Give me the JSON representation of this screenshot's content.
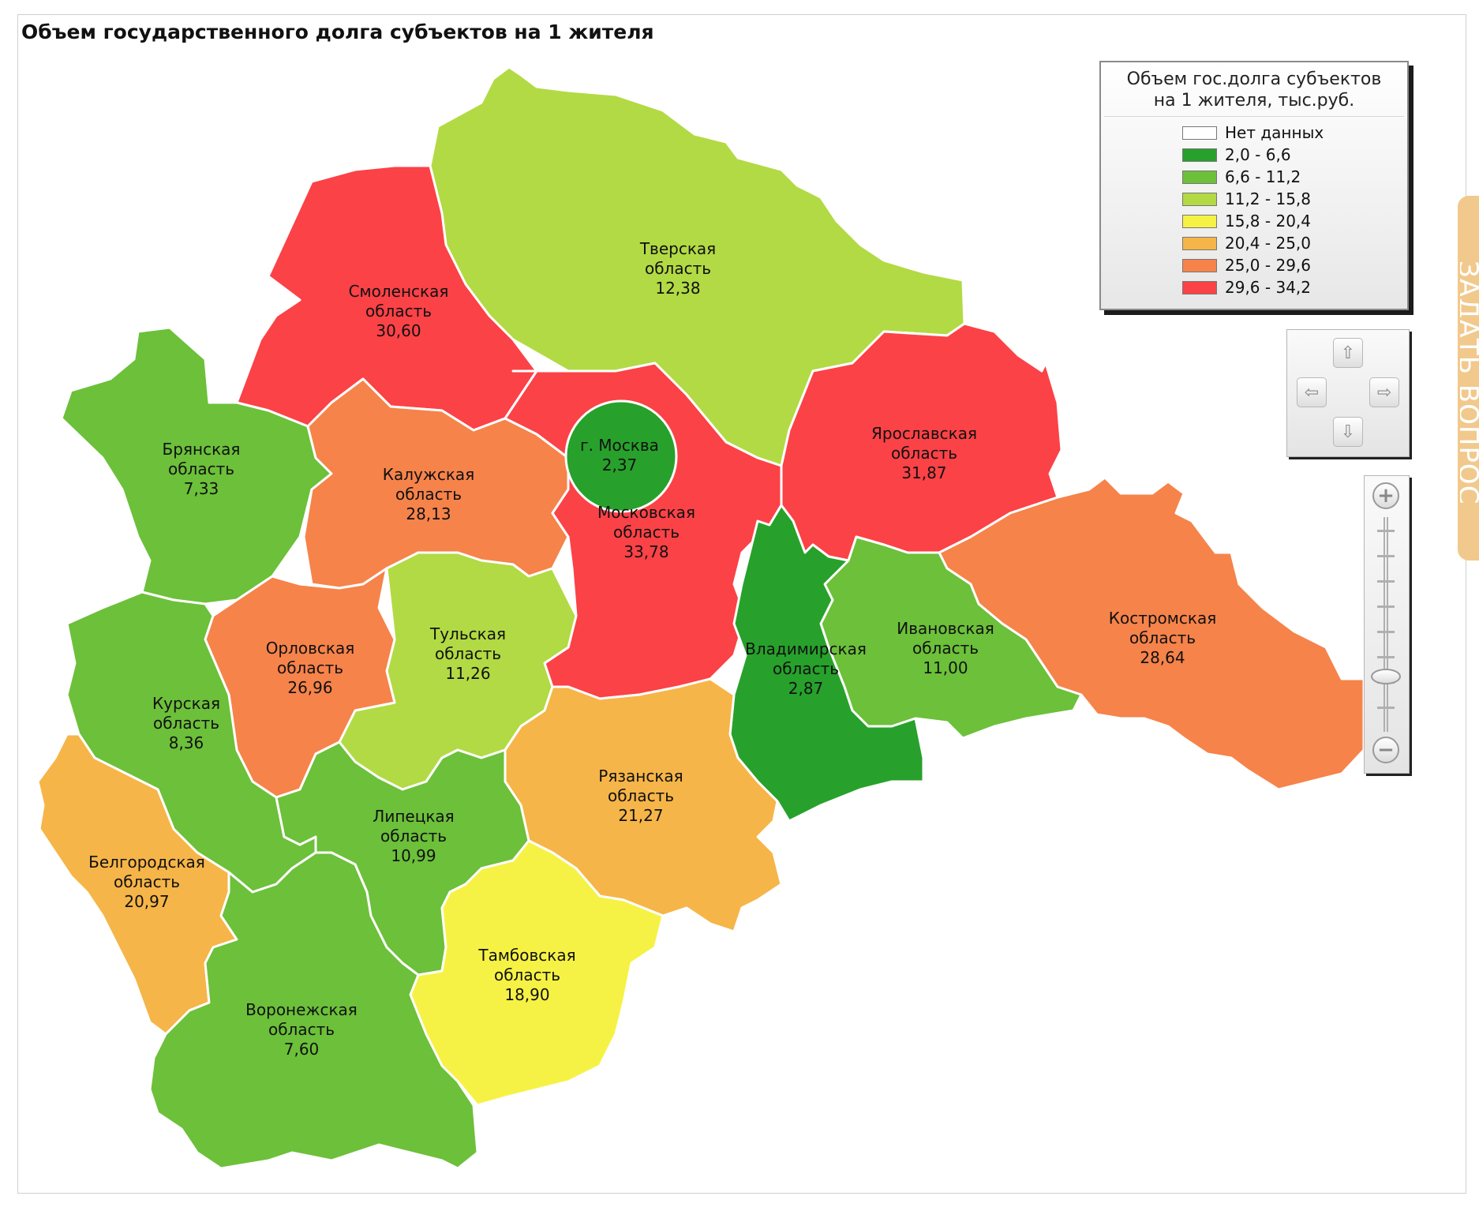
{
  "page": {
    "title": "Объем государственного долга субъектов на 1 жителя"
  },
  "legend": {
    "title_line1": "Объем гос.долга субъектов",
    "title_line2": "на 1 жителя, тыс.руб.",
    "items": [
      {
        "label": "Нет данных",
        "color": "#ffffff"
      },
      {
        "label": "2,0 - 6,6",
        "color": "#27a12b"
      },
      {
        "label": "6,6 - 11,2",
        "color": "#6cc03a"
      },
      {
        "label": "11,2 - 15,8",
        "color": "#b2da44"
      },
      {
        "label": "15,8 - 20,4",
        "color": "#f5f245"
      },
      {
        "label": "20,4 - 25,0",
        "color": "#f6b548"
      },
      {
        "label": "25,0 - 29,6",
        "color": "#f6834a"
      },
      {
        "label": "29,6 - 34,2",
        "color": "#fb4247"
      }
    ]
  },
  "regions": {
    "tver": {
      "name1": "Тверская",
      "name2": "область",
      "value": "12,38",
      "color": "#b2da44"
    },
    "smolensk": {
      "name1": "Смоленская",
      "name2": "область",
      "value": "30,60",
      "color": "#fb4247"
    },
    "bryansk": {
      "name1": "Брянская",
      "name2": "область",
      "value": "7,33",
      "color": "#6cc03a"
    },
    "kaluga": {
      "name1": "Калужская",
      "name2": "область",
      "value": "28,13",
      "color": "#f6834a"
    },
    "moscow_oblast": {
      "name1": "Московская",
      "name2": "область",
      "value": "33,78",
      "color": "#fb4247"
    },
    "moscow_city": {
      "name1": "г. Москва",
      "value": "2,37",
      "color": "#27a12b"
    },
    "yaroslavl": {
      "name1": "Ярославская",
      "name2": "область",
      "value": "31,87",
      "color": "#fb4247"
    },
    "kostroma": {
      "name1": "Костромская",
      "name2": "область",
      "value": "28,64",
      "color": "#f6834a"
    },
    "ivanovo": {
      "name1": "Ивановская",
      "name2": "область",
      "value": "11,00",
      "color": "#6cc03a"
    },
    "vladimir": {
      "name1": "Владимирская",
      "name2": "область",
      "value": "2,87",
      "color": "#27a12b"
    },
    "tula": {
      "name1": "Тульская",
      "name2": "область",
      "value": "11,26",
      "color": "#b2da44"
    },
    "orel": {
      "name1": "Орловская",
      "name2": "область",
      "value": "26,96",
      "color": "#f6834a"
    },
    "kursk": {
      "name1": "Курская",
      "name2": "область",
      "value": "8,36",
      "color": "#6cc03a"
    },
    "ryazan": {
      "name1": "Рязанская",
      "name2": "область",
      "value": "21,27",
      "color": "#f6b548"
    },
    "lipetsk": {
      "name1": "Липецкая",
      "name2": "область",
      "value": "10,99",
      "color": "#6cc03a"
    },
    "belgorod": {
      "name1": "Белгородская",
      "name2": "область",
      "value": "20,97",
      "color": "#f6b548"
    },
    "tambov": {
      "name1": "Тамбовская",
      "name2": "область",
      "value": "18,90",
      "color": "#f5f245"
    },
    "voronezh": {
      "name1": "Воронежская",
      "name2": "область",
      "value": "7,60",
      "color": "#6cc03a"
    }
  },
  "controls": {
    "pan_up": "⇧",
    "pan_down": "⇩",
    "pan_left": "⇦",
    "pan_right": "⇨",
    "zoom_in": "+",
    "zoom_out": "−"
  },
  "side_tab": {
    "label": "ЗАДАТЬ ВОПРОС"
  }
}
